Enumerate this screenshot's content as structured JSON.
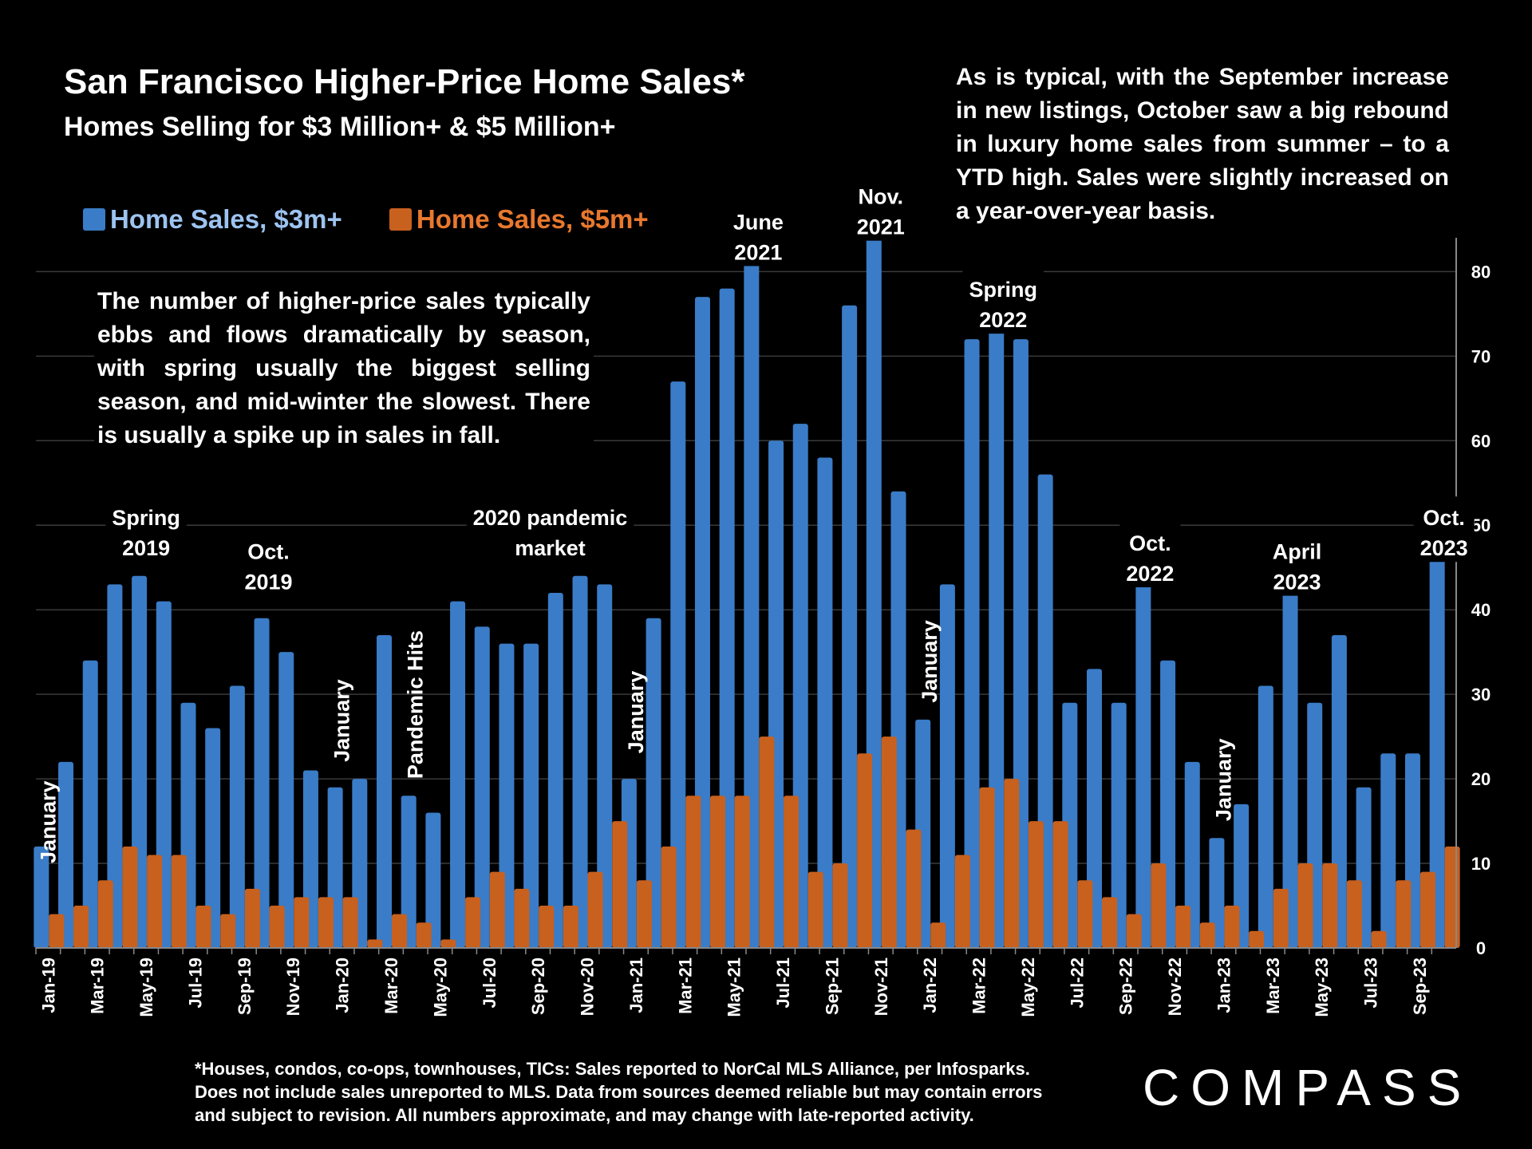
{
  "title": "San Francisco Higher-Price Home Sales*",
  "subtitle": "Homes Selling for $3 Million+ & $5 Million+",
  "note_top": "As is typical, with the September increase in new listings, October saw a big rebound in luxury home sales from summer – to a YTD high. Sales were slightly increased on a year-over-year basis.",
  "note_left": "The number of higher-price sales typically ebbs and flows dramatically by season, with spring usually the biggest selling season, and mid-winter the slowest. There is usually a spike up in sales in fall.",
  "footnote": [
    "*Houses, condos, co-ops, townhouses, TICs:  Sales reported to NorCal MLS Alliance, per Infosparks.",
    "Does not include sales unreported to MLS. Data from sources deemed reliable but may contain errors",
    "and subject to revision.  All numbers approximate, and may change with late-reported activity."
  ],
  "logo": "COMPASS",
  "colors": {
    "blue": "#3a7cc7",
    "orange": "#c8601e",
    "background": "#000000"
  },
  "chart_data": {
    "type": "bar",
    "title": "San Francisco Higher-Price Home Sales*",
    "ylim": [
      0,
      84
    ],
    "yticks": [
      0,
      10,
      20,
      30,
      40,
      50,
      60,
      70,
      80
    ],
    "grid": true,
    "categories": [
      "Jan-19",
      "Feb-19",
      "Mar-19",
      "Apr-19",
      "May-19",
      "Jun-19",
      "Jul-19",
      "Aug-19",
      "Sep-19",
      "Oct-19",
      "Nov-19",
      "Dec-19",
      "Jan-20",
      "Feb-20",
      "Mar-20",
      "Apr-20",
      "May-20",
      "Jun-20",
      "Jul-20",
      "Aug-20",
      "Sep-20",
      "Oct-20",
      "Nov-20",
      "Dec-20",
      "Jan-21",
      "Feb-21",
      "Mar-21",
      "Apr-21",
      "May-21",
      "Jun-21",
      "Jul-21",
      "Aug-21",
      "Sep-21",
      "Oct-21",
      "Nov-21",
      "Dec-21",
      "Jan-22",
      "Feb-22",
      "Mar-22",
      "Apr-22",
      "May-22",
      "Jun-22",
      "Jul-22",
      "Aug-22",
      "Sep-22",
      "Oct-22",
      "Nov-22",
      "Dec-22",
      "Jan-23",
      "Feb-23",
      "Mar-23",
      "Apr-23",
      "May-23",
      "Jun-23",
      "Jul-23",
      "Aug-23",
      "Sep-23",
      "Oct-23"
    ],
    "tick_labels": [
      "Jan-19",
      "",
      "Mar-19",
      "",
      "May-19",
      "",
      "Jul-19",
      "",
      "Sep-19",
      "",
      "Nov-19",
      "",
      "Jan-20",
      "",
      "Mar-20",
      "",
      "May-20",
      "",
      "Jul-20",
      "",
      "Sep-20",
      "",
      "Nov-20",
      "",
      "Jan-21",
      "",
      "Mar-21",
      "",
      "May-21",
      "",
      "Jul-21",
      "",
      "Sep-21",
      "",
      "Nov-21",
      "",
      "Jan-22",
      "",
      "Mar-22",
      "",
      "May-22",
      "",
      "Jul-22",
      "",
      "Sep-22",
      "",
      "Nov-22",
      "",
      "Jan-23",
      "",
      "Mar-23",
      "",
      "May-23",
      "",
      "Jul-23",
      "",
      "Sep-23",
      ""
    ],
    "series": [
      {
        "name": "Home Sales, $3m+",
        "color": "#3a7cc7",
        "values": [
          12,
          22,
          34,
          43,
          44,
          41,
          29,
          26,
          31,
          39,
          35,
          21,
          19,
          20,
          37,
          18,
          16,
          41,
          38,
          36,
          36,
          42,
          44,
          43,
          20,
          39,
          67,
          77,
          78,
          81,
          60,
          62,
          58,
          76,
          84,
          54,
          27,
          43,
          72,
          74,
          72,
          56,
          29,
          33,
          29,
          43,
          34,
          22,
          13,
          17,
          31,
          42,
          29,
          37,
          19,
          23,
          23,
          46
        ]
      },
      {
        "name": "Home Sales, $5m+",
        "color": "#c8601e",
        "values": [
          4,
          5,
          8,
          12,
          11,
          11,
          5,
          4,
          7,
          5,
          6,
          6,
          6,
          1,
          4,
          3,
          1,
          6,
          9,
          7,
          5,
          5,
          9,
          15,
          8,
          12,
          18,
          18,
          18,
          25,
          18,
          9,
          10,
          23,
          25,
          14,
          3,
          11,
          19,
          20,
          15,
          15,
          8,
          6,
          4,
          10,
          5,
          3,
          5,
          2,
          7,
          10,
          10,
          8,
          2,
          8,
          9,
          12
        ]
      }
    ],
    "annotations": [
      {
        "text": [
          "January"
        ],
        "index": 0,
        "rotate": true,
        "at": 10
      },
      {
        "text": [
          "Spring",
          "2019"
        ],
        "index": 4,
        "at": 50
      },
      {
        "text": [
          "Oct.",
          "2019"
        ],
        "index": 9,
        "at": 46
      },
      {
        "text": [
          "January"
        ],
        "index": 12,
        "rotate": true,
        "at": 22
      },
      {
        "text": [
          "Pandemic Hits"
        ],
        "index": 15,
        "rotate": true,
        "at": 20
      },
      {
        "text": [
          "2020 pandemic",
          "market"
        ],
        "index": 20.5,
        "at": 50
      },
      {
        "text": [
          "January"
        ],
        "index": 24,
        "rotate": true,
        "at": 23
      },
      {
        "text": [
          "June",
          "2021"
        ],
        "index": 29,
        "at": 85
      },
      {
        "text": [
          "Nov.",
          "2021"
        ],
        "index": 34,
        "at": 88
      },
      {
        "text": [
          "January"
        ],
        "index": 36,
        "rotate": true,
        "at": 29
      },
      {
        "text": [
          "Spring",
          "2022"
        ],
        "index": 39,
        "at": 77
      },
      {
        "text": [
          "Oct.",
          "2022"
        ],
        "index": 45,
        "at": 47
      },
      {
        "text": [
          "January"
        ],
        "index": 48,
        "rotate": true,
        "at": 15
      },
      {
        "text": [
          "April",
          "2023"
        ],
        "index": 51,
        "at": 46
      },
      {
        "text": [
          "Oct.",
          "2023"
        ],
        "index": 57,
        "at": 50
      }
    ]
  }
}
